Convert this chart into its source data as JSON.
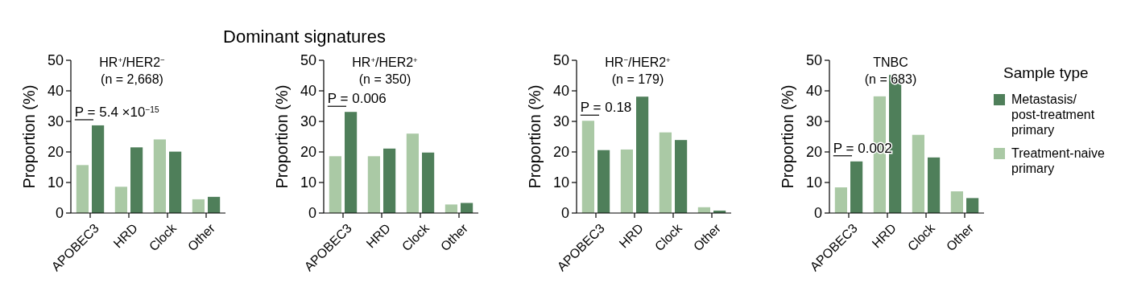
{
  "chart_data": [
    {
      "type": "bar",
      "title": "HR$^{+}$/HER2$^{−}$",
      "subtitle": "(n = 2,668)",
      "ylabel": "Proportion (%)",
      "categories": [
        "APOBEC3",
        "HRD",
        "Clock",
        "Other"
      ],
      "ylim": [
        0,
        50
      ],
      "yticks": [
        0,
        10,
        20,
        30,
        40,
        50
      ],
      "legend": false,
      "series": [
        {
          "color": "#aac9a5",
          "values": [
            15.7,
            8.6,
            24.1,
            4.5
          ]
        },
        {
          "color": "#4f7f5a",
          "values": [
            28.7,
            21.5,
            20.1,
            5.3
          ]
        }
      ],
      "annotations": [
        "Dominant signatures",
        "P = 5.4 ×10$^{−15}$"
      ]
    },
    {
      "type": "bar",
      "title": "HR$^{+}$/HER2$^{+}$",
      "subtitle": "(n = 350)",
      "ylabel": "Proportion (%)",
      "categories": [
        "APOBEC3",
        "HRD",
        "Clock",
        "Other"
      ],
      "ylim": [
        0,
        50
      ],
      "yticks": [
        0,
        10,
        20,
        30,
        40,
        50
      ],
      "legend": false,
      "series": [
        {
          "color": "#aac9a5",
          "values": [
            18.6,
            18.6,
            26,
            2.8
          ]
        },
        {
          "color": "#4f7f5a",
          "values": [
            33.1,
            21.1,
            19.8,
            3.3
          ]
        }
      ],
      "annotations": [
        "P = 0.006"
      ]
    },
    {
      "type": "bar",
      "title": "HR$^{−}$/HER2$^{+}$",
      "subtitle": "(n = 179)",
      "ylabel": "Proportion (%)",
      "categories": [
        "APOBEC3",
        "HRD",
        "Clock",
        "Other"
      ],
      "ylim": [
        0,
        50
      ],
      "yticks": [
        0,
        10,
        20,
        30,
        40,
        50
      ],
      "legend": false,
      "series": [
        {
          "color": "#aac9a5",
          "values": [
            30.2,
            20.8,
            26.4,
            1.9
          ]
        },
        {
          "color": "#4f7f5a",
          "values": [
            20.6,
            38.1,
            23.9,
            0.8
          ]
        }
      ],
      "annotations": [
        "P = 0.18"
      ]
    },
    {
      "type": "bar",
      "title": "TNBC",
      "subtitle": "(n = 683)",
      "ylabel": "Proportion (%)",
      "categories": [
        "APOBEC3",
        "HRD",
        "Clock",
        "Other"
      ],
      "ylim": [
        0,
        50
      ],
      "yticks": [
        0,
        10,
        20,
        30,
        40,
        50
      ],
      "legend": "right",
      "legend_title": "Sample type",
      "series": [
        {
          "name": "Treatment-naive primary",
          "color": "#aac9a5",
          "values": [
            8.4,
            38.2,
            25.6,
            7.1
          ]
        },
        {
          "name": "Metastasis/ post-treatment primary",
          "color": "#4f7f5a",
          "values": [
            16.9,
            45.2,
            18.2,
            4.9
          ]
        }
      ],
      "annotations": [
        "P = 0.002"
      ]
    }
  ]
}
